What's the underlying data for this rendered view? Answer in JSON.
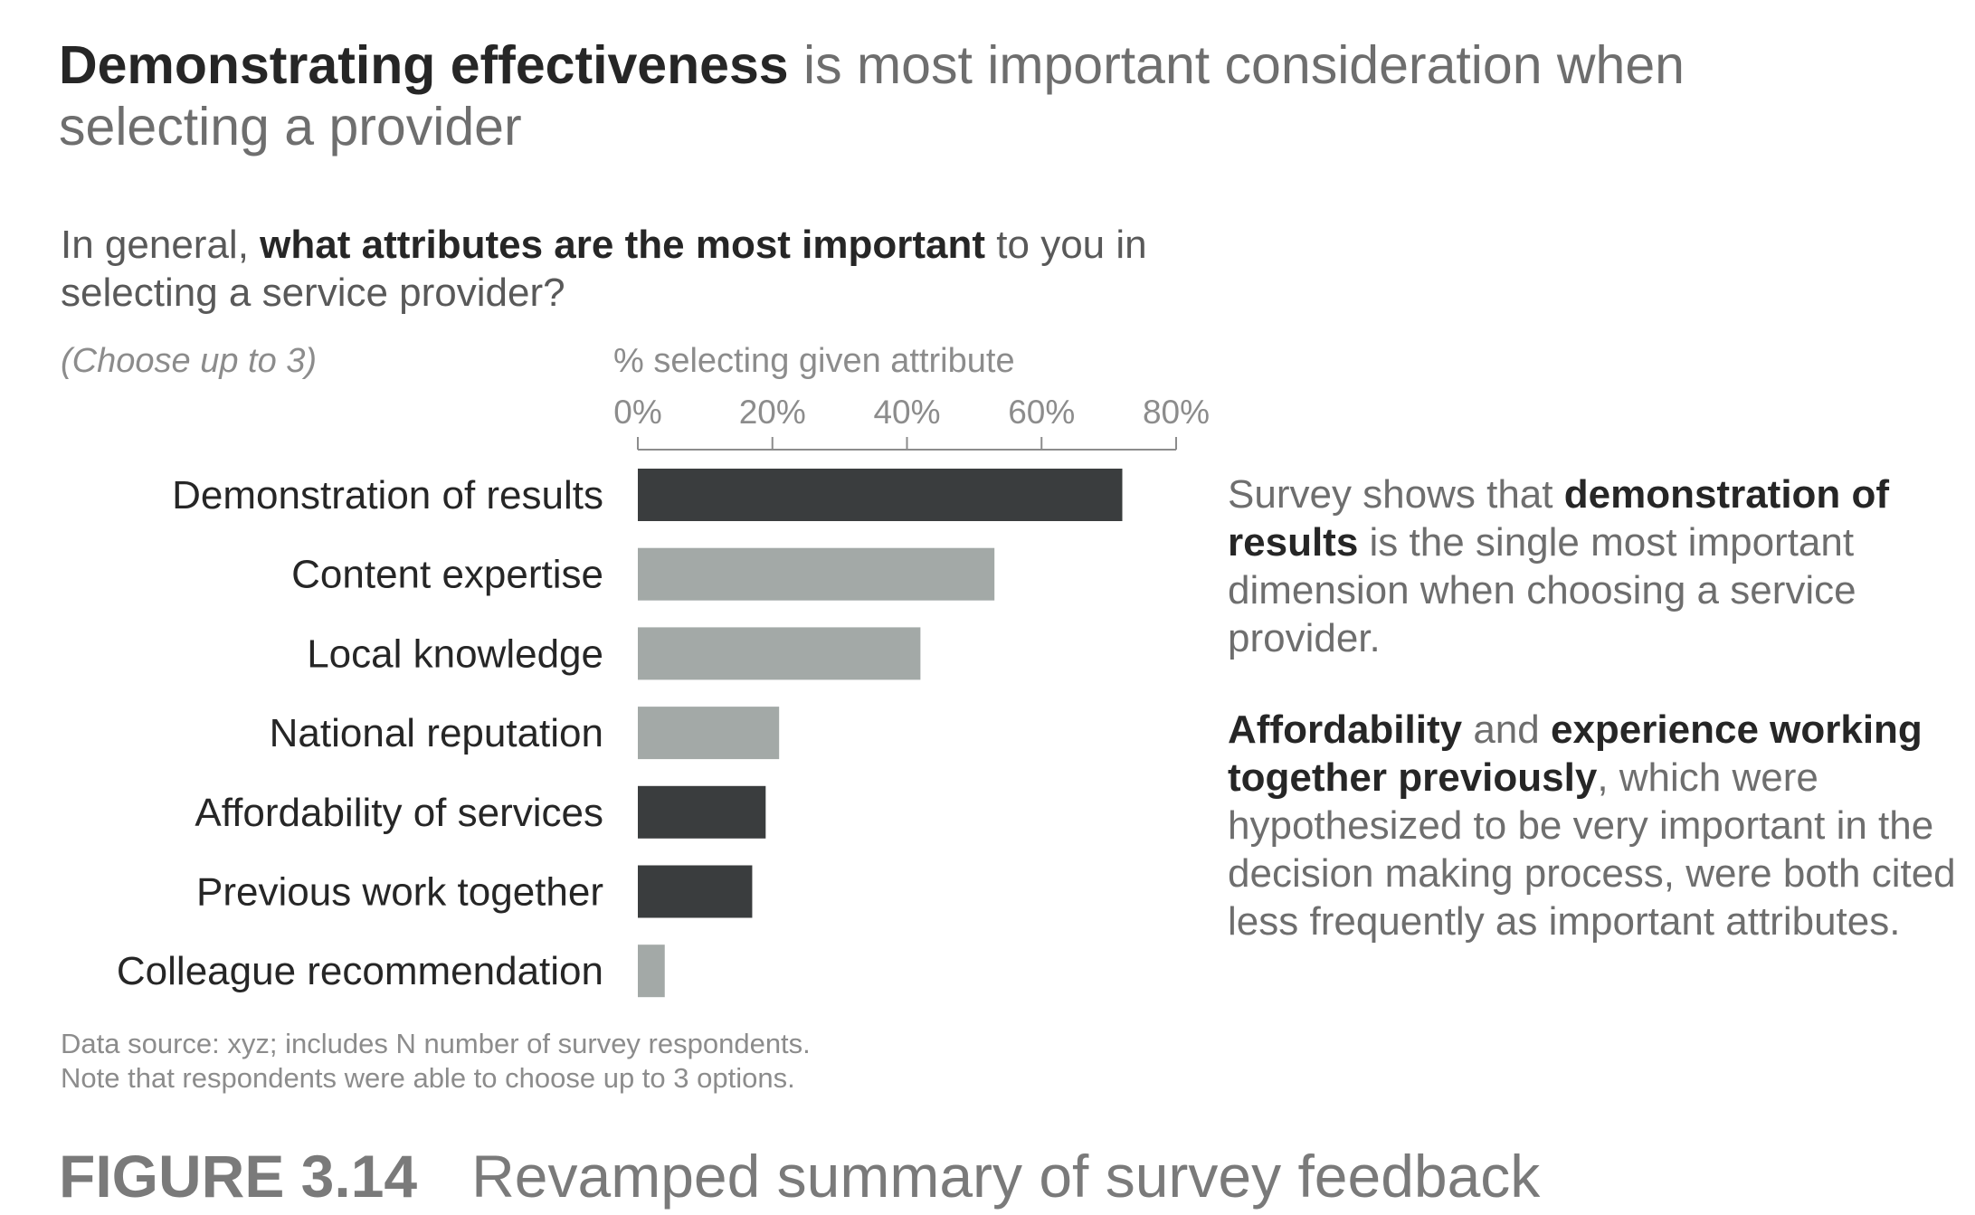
{
  "title": {
    "bold": "Demonstrating effectiveness",
    "rest": " is most important consideration when selecting a provider"
  },
  "question": {
    "prefix": "In general, ",
    "bold": "what attributes are the most important",
    "suffix": " to you in selecting a service provider?",
    "note": "(Choose up to 3)"
  },
  "annotation": {
    "p1_a": "Survey shows that ",
    "p1_bold": "demonstration of results",
    "p1_b": " is the single most important dimension when choosing a service provider.",
    "p2_bold1": "Affordability",
    "p2_a": " and ",
    "p2_bold2": "experience working together previously",
    "p2_b": ", which were hypothesized to be very important in the decision making process, were both cited less frequently as important attributes."
  },
  "source": {
    "line1": "Data source: xyz; includes N number of survey respondents.",
    "line2": "Note that respondents were able to choose up to 3 options."
  },
  "caption": {
    "figure": "FIGURE 3.14",
    "text": "Revamped summary of survey feedback"
  },
  "chart_data": {
    "type": "bar",
    "orientation": "horizontal",
    "xlabel": "% selecting given attribute",
    "xlim": [
      0,
      80
    ],
    "xticks": [
      "0%",
      "20%",
      "40%",
      "60%",
      "80%"
    ],
    "tick_values": [
      0,
      20,
      40,
      60,
      80
    ],
    "categories": [
      "Demonstration of results",
      "Content expertise",
      "Local knowledge",
      "National reputation",
      "Affordability of services",
      "Previous work together",
      "Colleague recommendation"
    ],
    "values": [
      72,
      53,
      42,
      21,
      19,
      17,
      4
    ],
    "highlighted": [
      true,
      false,
      false,
      false,
      true,
      true,
      false
    ],
    "colors": {
      "highlight": "#3a3d3e",
      "muted": "#a3a9a7",
      "axis": "#8c8c8c"
    }
  }
}
